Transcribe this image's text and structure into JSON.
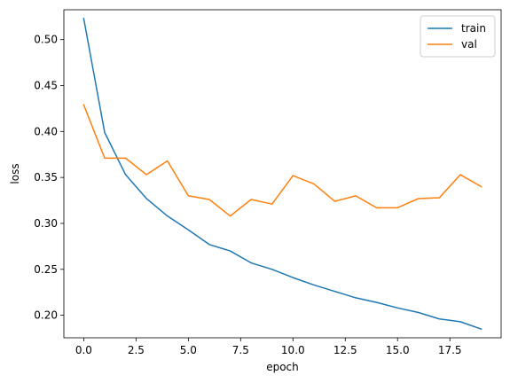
{
  "chart_data": {
    "type": "line",
    "xlabel": "epoch",
    "ylabel": "loss",
    "xlim": [
      -0.95,
      19.95
    ],
    "ylim": [
      0.1755,
      0.5325
    ],
    "x_ticks": [
      0.0,
      2.5,
      5.0,
      7.5,
      10.0,
      12.5,
      15.0,
      17.5
    ],
    "x_tick_labels": [
      "0.0",
      "2.5",
      "5.0",
      "7.5",
      "10.0",
      "12.5",
      "15.0",
      "17.5"
    ],
    "y_ticks": [
      0.2,
      0.25,
      0.3,
      0.35,
      0.4,
      0.45,
      0.5
    ],
    "y_tick_labels": [
      "0.20",
      "0.25",
      "0.30",
      "0.35",
      "0.40",
      "0.45",
      "0.50"
    ],
    "grid": false,
    "legend_position": "top-right",
    "x": [
      0,
      1,
      2,
      3,
      4,
      5,
      6,
      7,
      8,
      9,
      10,
      11,
      12,
      13,
      14,
      15,
      16,
      17,
      18,
      19
    ],
    "series": [
      {
        "name": "train",
        "color": "#1f77b4",
        "values": [
          0.523,
          0.399,
          0.353,
          0.327,
          0.308,
          0.293,
          0.277,
          0.27,
          0.257,
          0.25,
          0.241,
          0.233,
          0.226,
          0.219,
          0.214,
          0.208,
          0.203,
          0.196,
          0.193,
          0.185
        ]
      },
      {
        "name": "val",
        "color": "#ff7f0e",
        "values": [
          0.429,
          0.371,
          0.371,
          0.353,
          0.368,
          0.33,
          0.326,
          0.308,
          0.326,
          0.321,
          0.352,
          0.343,
          0.324,
          0.33,
          0.317,
          0.317,
          0.327,
          0.328,
          0.353,
          0.34
        ]
      }
    ]
  }
}
